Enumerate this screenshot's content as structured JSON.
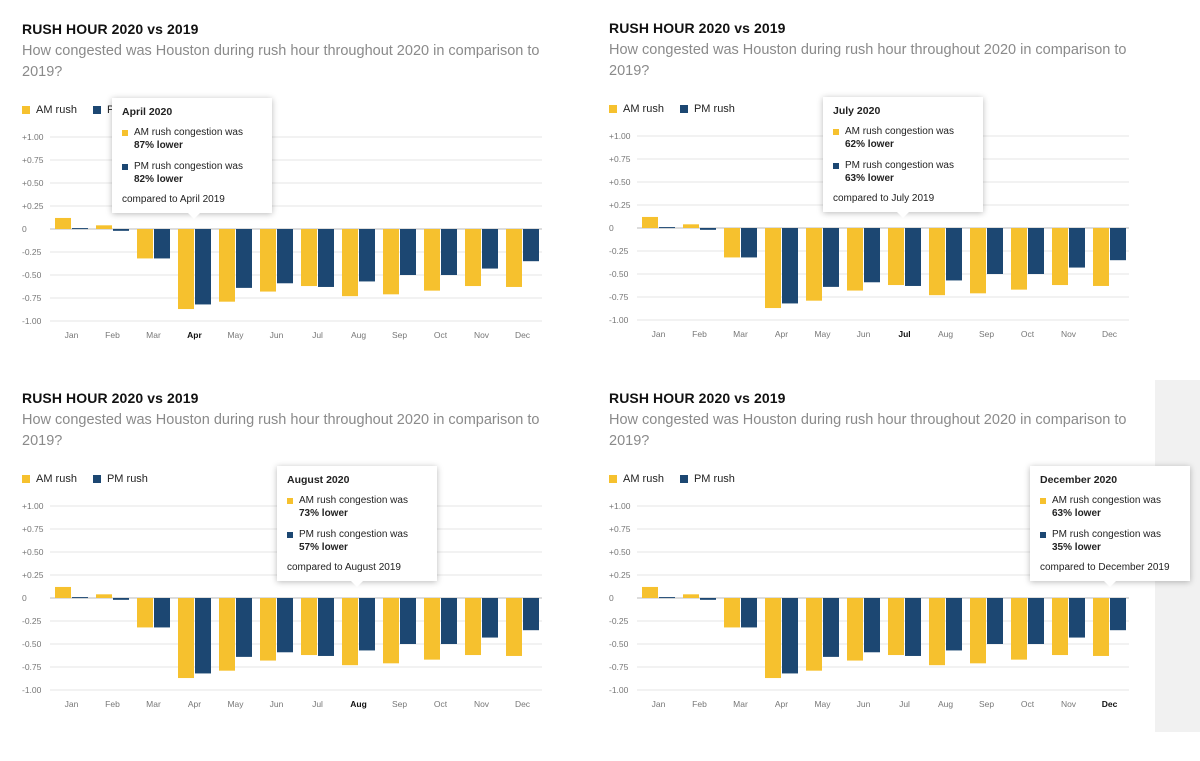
{
  "colors": {
    "am": "#f6c12e",
    "pm": "#1c4772",
    "grid": "#e6e6e6",
    "zero": "#bbbbbb"
  },
  "legend": {
    "am": "AM rush",
    "pm": "PM rush"
  },
  "panels": [
    {
      "title": "RUSH HOUR 2020 vs 2019",
      "subtitle": "How congested was Houston during rush hour throughout 2020 in comparison to 2019?",
      "tooltip": {
        "title": "April 2020",
        "am_line1": "AM rush congestion was",
        "am_value": "87% lower",
        "pm_line1": "PM rush congestion was",
        "pm_value": "82% lower",
        "footer": "compared to April 2019"
      }
    },
    {
      "title": "RUSH HOUR 2020 vs 2019",
      "subtitle": "How congested was Houston during rush hour throughout 2020 in comparison to 2019?",
      "tooltip": {
        "title": "July 2020",
        "am_line1": "AM rush congestion was",
        "am_value": "62% lower",
        "pm_line1": "PM rush congestion was",
        "pm_value": "63% lower",
        "footer": "compared to July 2019"
      }
    },
    {
      "title": "RUSH HOUR 2020 vs 2019",
      "subtitle": "How congested was Houston during rush hour throughout 2020 in comparison to 2019?",
      "tooltip": {
        "title": "August 2020",
        "am_line1": "AM rush congestion was",
        "am_value": "73% lower",
        "pm_line1": "PM rush congestion was",
        "pm_value": "57% lower",
        "footer": "compared to August 2019"
      }
    },
    {
      "title": "RUSH HOUR 2020 vs 2019",
      "subtitle": "How congested was Houston during rush hour throughout 2020 in comparison to 2019?",
      "tooltip": {
        "title": "December 2020",
        "am_line1": "AM rush congestion was",
        "am_value": "63% lower",
        "pm_line1": "PM rush congestion was",
        "pm_value": "35% lower",
        "footer": "compared to December 2019"
      }
    }
  ],
  "chart_data": [
    {
      "type": "bar",
      "title": "RUSH HOUR 2020 vs 2019",
      "subtitle": "How congested was Houston during rush hour throughout 2020 in comparison to 2019?",
      "categories": [
        "Jan",
        "Feb",
        "Mar",
        "Apr",
        "May",
        "Jun",
        "Jul",
        "Aug",
        "Sep",
        "Oct",
        "Nov",
        "Dec"
      ],
      "series": [
        {
          "name": "AM rush",
          "values": [
            0.12,
            0.04,
            -0.32,
            -0.87,
            -0.79,
            -0.68,
            -0.62,
            -0.73,
            -0.71,
            -0.67,
            -0.62,
            -0.63
          ]
        },
        {
          "name": "PM rush",
          "values": [
            0.01,
            -0.02,
            -0.32,
            -0.82,
            -0.64,
            -0.59,
            -0.63,
            -0.57,
            -0.5,
            -0.5,
            -0.43,
            -0.35
          ]
        }
      ],
      "yticks": [
        "+1.00",
        "+0.75",
        "+0.50",
        "+0.25",
        "0",
        "-0.25",
        "-0.50",
        "-0.75",
        "-1.00"
      ],
      "ylim": [
        -1.0,
        1.0
      ],
      "highlighted": "Apr"
    },
    {
      "type": "bar",
      "title": "RUSH HOUR 2020 vs 2019",
      "subtitle": "How congested was Houston during rush hour throughout 2020 in comparison to 2019?",
      "categories": [
        "Jan",
        "Feb",
        "Mar",
        "Apr",
        "May",
        "Jun",
        "Jul",
        "Aug",
        "Sep",
        "Oct",
        "Nov",
        "Dec"
      ],
      "series": [
        {
          "name": "AM rush",
          "values": [
            0.12,
            0.04,
            -0.32,
            -0.87,
            -0.79,
            -0.68,
            -0.62,
            -0.73,
            -0.71,
            -0.67,
            -0.62,
            -0.63
          ]
        },
        {
          "name": "PM rush",
          "values": [
            0.01,
            -0.02,
            -0.32,
            -0.82,
            -0.64,
            -0.59,
            -0.63,
            -0.57,
            -0.5,
            -0.5,
            -0.43,
            -0.35
          ]
        }
      ],
      "yticks": [
        "+1.00",
        "+0.75",
        "+0.50",
        "+0.25",
        "0",
        "-0.25",
        "-0.50",
        "-0.75",
        "-1.00"
      ],
      "ylim": [
        -1.0,
        1.0
      ],
      "highlighted": "Jul"
    },
    {
      "type": "bar",
      "title": "RUSH HOUR 2020 vs 2019",
      "subtitle": "How congested was Houston during rush hour throughout 2020 in comparison to 2019?",
      "categories": [
        "Jan",
        "Feb",
        "Mar",
        "Apr",
        "May",
        "Jun",
        "Jul",
        "Aug",
        "Sep",
        "Oct",
        "Nov",
        "Dec"
      ],
      "series": [
        {
          "name": "AM rush",
          "values": [
            0.12,
            0.04,
            -0.32,
            -0.87,
            -0.79,
            -0.68,
            -0.62,
            -0.73,
            -0.71,
            -0.67,
            -0.62,
            -0.63
          ]
        },
        {
          "name": "PM rush",
          "values": [
            0.01,
            -0.02,
            -0.32,
            -0.82,
            -0.64,
            -0.59,
            -0.63,
            -0.57,
            -0.5,
            -0.5,
            -0.43,
            -0.35
          ]
        }
      ],
      "yticks": [
        "+1.00",
        "+0.75",
        "+0.50",
        "+0.25",
        "0",
        "-0.25",
        "-0.50",
        "-0.75",
        "-1.00"
      ],
      "ylim": [
        -1.0,
        1.0
      ],
      "highlighted": "Aug"
    },
    {
      "type": "bar",
      "title": "RUSH HOUR 2020 vs 2019",
      "subtitle": "How congested was Houston during rush hour throughout 2020 in comparison to 2019?",
      "categories": [
        "Jan",
        "Feb",
        "Mar",
        "Apr",
        "May",
        "Jun",
        "Jul",
        "Aug",
        "Sep",
        "Oct",
        "Nov",
        "Dec"
      ],
      "series": [
        {
          "name": "AM rush",
          "values": [
            0.12,
            0.04,
            -0.32,
            -0.87,
            -0.79,
            -0.68,
            -0.62,
            -0.73,
            -0.71,
            -0.67,
            -0.62,
            -0.63
          ]
        },
        {
          "name": "PM rush",
          "values": [
            0.01,
            -0.02,
            -0.32,
            -0.82,
            -0.64,
            -0.59,
            -0.63,
            -0.57,
            -0.5,
            -0.5,
            -0.43,
            -0.35
          ]
        }
      ],
      "yticks": [
        "+1.00",
        "+0.75",
        "+0.50",
        "+0.25",
        "0",
        "-0.25",
        "-0.50",
        "-0.75",
        "-1.00"
      ],
      "ylim": [
        -1.0,
        1.0
      ],
      "highlighted": "Dec"
    }
  ]
}
